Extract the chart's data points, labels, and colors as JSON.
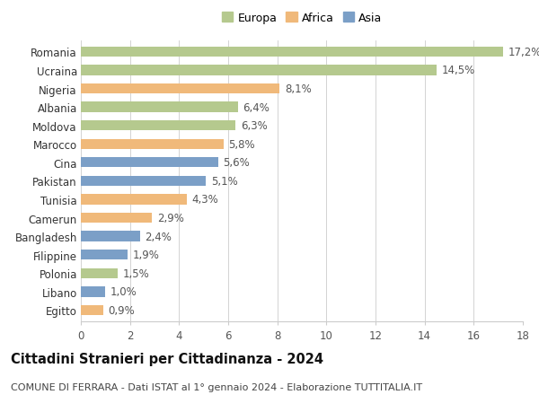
{
  "countries": [
    "Romania",
    "Ucraina",
    "Nigeria",
    "Albania",
    "Moldova",
    "Marocco",
    "Cina",
    "Pakistan",
    "Tunisia",
    "Camerun",
    "Bangladesh",
    "Filippine",
    "Polonia",
    "Libano",
    "Egitto"
  ],
  "values": [
    17.2,
    14.5,
    8.1,
    6.4,
    6.3,
    5.8,
    5.6,
    5.1,
    4.3,
    2.9,
    2.4,
    1.9,
    1.5,
    1.0,
    0.9
  ],
  "continents": [
    "Europa",
    "Europa",
    "Africa",
    "Europa",
    "Europa",
    "Africa",
    "Asia",
    "Asia",
    "Africa",
    "Africa",
    "Asia",
    "Asia",
    "Europa",
    "Asia",
    "Africa"
  ],
  "colors": {
    "Europa": "#b5c98e",
    "Africa": "#f0b97a",
    "Asia": "#7b9fc7"
  },
  "legend_labels": [
    "Europa",
    "Africa",
    "Asia"
  ],
  "title": "Cittadini Stranieri per Cittadinanza - 2024",
  "subtitle": "COMUNE DI FERRARA - Dati ISTAT al 1° gennaio 2024 - Elaborazione TUTTITALIA.IT",
  "xlim": [
    0,
    18
  ],
  "xticks": [
    0,
    2,
    4,
    6,
    8,
    10,
    12,
    14,
    16,
    18
  ],
  "background_color": "#ffffff",
  "grid_color": "#cccccc",
  "bar_height": 0.55,
  "label_fontsize": 8.5,
  "title_fontsize": 10.5,
  "subtitle_fontsize": 8.0,
  "axis_label_fontsize": 8.5
}
